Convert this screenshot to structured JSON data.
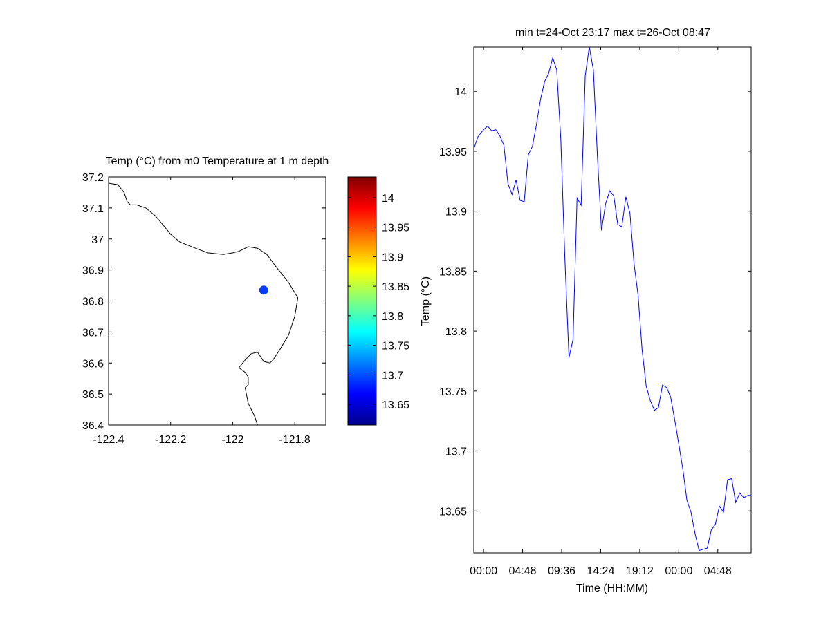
{
  "chart_data": [
    {
      "type": "map",
      "title": "Temp (°C) from m0 Temperature at 1 m depth",
      "xlim": [
        -122.4,
        -121.7
      ],
      "ylim": [
        36.4,
        37.2
      ],
      "xticks": [
        "-122.4",
        "-122.2",
        "-122",
        "-121.8"
      ],
      "yticks": [
        "37.2",
        "37.1",
        "37",
        "36.9",
        "36.8",
        "36.7",
        "36.6",
        "36.5",
        "36.4"
      ],
      "station": {
        "lon": -121.9,
        "lat": 36.835,
        "color": "#0a3cf5"
      },
      "coastline": [
        [
          -122.4,
          37.18
        ],
        [
          -122.37,
          37.175
        ],
        [
          -122.35,
          37.15
        ],
        [
          -122.34,
          37.12
        ],
        [
          -122.33,
          37.11
        ],
        [
          -122.31,
          37.11
        ],
        [
          -122.28,
          37.1
        ],
        [
          -122.25,
          37.075
        ],
        [
          -122.22,
          37.04
        ],
        [
          -122.2,
          37.015
        ],
        [
          -122.17,
          36.99
        ],
        [
          -122.12,
          36.97
        ],
        [
          -122.08,
          36.955
        ],
        [
          -122.03,
          36.95
        ],
        [
          -122.0,
          36.955
        ],
        [
          -121.98,
          36.96
        ],
        [
          -121.95,
          36.975
        ],
        [
          -121.92,
          36.97
        ],
        [
          -121.89,
          36.95
        ],
        [
          -121.86,
          36.91
        ],
        [
          -121.82,
          36.86
        ],
        [
          -121.79,
          36.81
        ],
        [
          -121.8,
          36.75
        ],
        [
          -121.82,
          36.69
        ],
        [
          -121.85,
          36.64
        ],
        [
          -121.87,
          36.61
        ],
        [
          -121.88,
          36.6
        ],
        [
          -121.9,
          36.605
        ],
        [
          -121.92,
          36.635
        ],
        [
          -121.94,
          36.63
        ],
        [
          -121.96,
          36.61
        ],
        [
          -121.98,
          36.585
        ],
        [
          -121.96,
          36.57
        ],
        [
          -121.95,
          36.555
        ],
        [
          -121.95,
          36.53
        ],
        [
          -121.96,
          36.52
        ],
        [
          -121.95,
          36.47
        ],
        [
          -121.93,
          36.43
        ],
        [
          -121.92,
          36.4
        ]
      ]
    },
    {
      "type": "colorbar",
      "ylabel": "Temp (°C)",
      "range": [
        13.615,
        14.035
      ],
      "ticks": [
        13.65,
        13.7,
        13.75,
        13.8,
        13.85,
        13.9,
        13.95,
        14
      ],
      "tick_labels": [
        "13.65",
        "13.7",
        "13.75",
        "13.8",
        "13.85",
        "13.9",
        "13.95",
        "14"
      ],
      "colormap": "jet"
    },
    {
      "type": "line",
      "title": "min t=24-Oct 23:17 max t=26-Oct 08:47",
      "xlabel": "Time (HH:MM)",
      "ylabel": "",
      "x_unit": "hours",
      "xlim": [
        -1.2,
        32.9
      ],
      "ylim": [
        13.615,
        14.037
      ],
      "xticks": [
        0,
        4.8,
        9.6,
        14.4,
        19.2,
        24,
        28.8
      ],
      "xtick_labels": [
        "00:00",
        "04:48",
        "09:36",
        "14:24",
        "19:12",
        "00:00",
        "04:48"
      ],
      "yticks": [
        13.65,
        13.7,
        13.75,
        13.8,
        13.85,
        13.9,
        13.95,
        14
      ],
      "ytick_labels": [
        "13.65",
        "13.7",
        "13.75",
        "13.8",
        "13.85",
        "13.9",
        "13.95",
        "14"
      ],
      "grid": false,
      "series": [
        {
          "color": "#0000ff",
          "x": [
            -1.2,
            -0.7,
            0.0,
            0.5,
            1.0,
            1.5,
            2.0,
            2.5,
            3.0,
            3.5,
            4.0,
            4.5,
            5.0,
            5.5,
            6.0,
            6.5,
            7.0,
            7.5,
            8.0,
            8.5,
            9.0,
            9.5,
            10.0,
            10.5,
            11.0,
            11.5,
            12.0,
            12.5,
            13.0,
            13.5,
            14.0,
            14.5,
            15.0,
            15.5,
            16.0,
            16.5,
            17.0,
            17.5,
            18.0,
            18.5,
            19.0,
            19.5,
            20.0,
            20.5,
            21.0,
            21.5,
            22.0,
            22.5,
            23.0,
            23.5,
            24.0,
            24.5,
            25.0,
            25.5,
            26.0,
            26.5,
            27.0,
            27.5,
            28.0,
            28.5,
            29.0,
            29.5,
            30.0,
            30.5,
            31.0,
            31.5,
            32.0,
            32.5,
            32.9
          ],
          "y": [
            13.952,
            13.962,
            13.968,
            13.971,
            13.967,
            13.968,
            13.963,
            13.955,
            13.923,
            13.914,
            13.926,
            13.909,
            13.908,
            13.947,
            13.954,
            13.972,
            13.993,
            14.008,
            14.015,
            14.028,
            14.018,
            13.96,
            13.86,
            13.778,
            13.793,
            13.911,
            13.905,
            14.013,
            14.037,
            14.018,
            13.946,
            13.884,
            13.906,
            13.917,
            13.913,
            13.889,
            13.887,
            13.912,
            13.898,
            13.856,
            13.83,
            13.784,
            13.754,
            13.742,
            13.734,
            13.736,
            13.755,
            13.753,
            13.745,
            13.726,
            13.706,
            13.685,
            13.659,
            13.649,
            13.631,
            13.617,
            13.618,
            13.619,
            13.634,
            13.639,
            13.654,
            13.649,
            13.676,
            13.677,
            13.657,
            13.665,
            13.661,
            13.663,
            13.663
          ]
        }
      ]
    }
  ]
}
